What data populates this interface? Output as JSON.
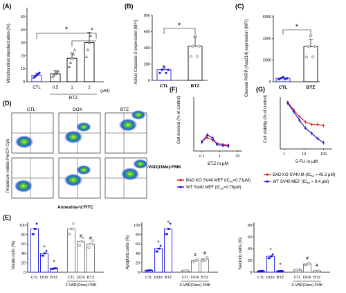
{
  "colors": {
    "blue": "#1616e0",
    "grey": "#6e6e6e",
    "red": "#e02020",
    "dark": "#000000"
  },
  "panels": {
    "A": {
      "letter": "(A)",
      "ylabel": "Mitochondrial depolarization (%)",
      "yticks": [
        "0",
        "10",
        "20",
        "30",
        "40",
        "50"
      ],
      "categories": [
        "CTL",
        "0.5",
        "1",
        "2"
      ],
      "group": "BTZ",
      "unit": "(μM)",
      "star": "*",
      "values": [
        5,
        6,
        18,
        30
      ],
      "errors": [
        1.5,
        2.5,
        4,
        8
      ]
    },
    "B": {
      "letter": "(B)",
      "ylabel": "Active Caspase-3 expression (MFI)",
      "yticks": [
        "0",
        "200",
        "400",
        "600",
        "800"
      ],
      "categories": [
        "CTL",
        "BTZ"
      ],
      "star": "*",
      "values": [
        130,
        420
      ],
      "errors": [
        15,
        110
      ]
    },
    "C": {
      "letter": "(C)",
      "ylabel": "Cleaved PARP (Asp214) expression (MFI)",
      "yticks": [
        "0",
        "2000",
        "4000",
        "6000"
      ],
      "categories": [
        "CTL",
        "BTZ"
      ],
      "star": "*",
      "values": [
        320,
        3250
      ],
      "errors": [
        80,
        650
      ]
    },
    "D": {
      "letter": "(D)",
      "columns": [
        "CTL",
        "DOX",
        "BTZ"
      ],
      "ylabel": "Propidium Iodide-PerCP-Cy5",
      "xlabel": "Annexina-V:FITC",
      "rowlabel": "Z-VAD(OMe)-FMK"
    },
    "F": {
      "letter": "(F)",
      "ylabel": "Cell survival (% of control)",
      "xlabel": "BTZ in μM",
      "xticks": [
        "0.1",
        "1",
        "10"
      ]
    },
    "G": {
      "letter": "(G)",
      "ylabel": "Cell viability (% of control)",
      "xlabel": "5-FU in μM",
      "xticks": [
        "1",
        "10",
        "100"
      ]
    },
    "legend": {
      "bad_f": "BAD KO SV40 MEF (IC",
      "bad_f2": "=0.73μM)",
      "wt_f": "WT SV40 MEF (IC",
      "wt_f2": "=0.78μM)",
      "bad_g": "BAD KO SV40 M (IC",
      "bad_g2": " = 45.3 μM)",
      "wt_g": "WT SV40 MEF (IC",
      "wt_g2": " = 9.4 μM)",
      "sub": "50"
    },
    "E": {
      "letter": "(E)",
      "viable": {
        "ylabel": "Viable cells (%)",
        "yticks": [
          "0",
          "20",
          "40",
          "60",
          "80",
          "100"
        ]
      },
      "apoptotic": {
        "ylabel": "Apoptotic cells (%)",
        "yticks": [
          "0",
          "20",
          "40",
          "60",
          "80",
          "100"
        ]
      },
      "necrotic": {
        "ylabel": "Necrotic cells (%)",
        "yticks": [
          "0",
          "20",
          "40",
          "60",
          "80"
        ]
      },
      "categories": [
        "CTL",
        "DOX",
        "BTZ",
        "CTL",
        "DOX",
        "BTZ"
      ],
      "zvad": "Z-VAD(Ome)-FMK",
      "star": "*",
      "hash": "#"
    }
  },
  "chart_data": [
    {
      "type": "bar",
      "title": "",
      "categories": [
        "CTL",
        "0.5",
        "1",
        "2"
      ],
      "values": [
        5,
        6,
        18,
        30
      ],
      "errors": [
        1.5,
        2.5,
        4,
        8
      ],
      "xlabel": "BTZ (μM)",
      "ylabel": "Mitochondrial depolarization (%)",
      "ylim": [
        0,
        50
      ]
    },
    {
      "type": "bar",
      "categories": [
        "CTL",
        "BTZ"
      ],
      "values": [
        130,
        420
      ],
      "errors": [
        15,
        110
      ],
      "ylabel": "Active Caspase-3 expression (MFI)",
      "ylim": [
        0,
        800
      ]
    },
    {
      "type": "bar",
      "categories": [
        "CTL",
        "BTZ"
      ],
      "values": [
        320,
        3250
      ],
      "errors": [
        80,
        650
      ],
      "ylabel": "Cleaved PARP (Asp214) expression (MFI)",
      "ylim": [
        0,
        6000
      ]
    },
    {
      "type": "line",
      "xlabel": "BTZ in μM",
      "ylabel": "Cell survival (% of control)",
      "log_x": true,
      "series": [
        {
          "name": "BAD KO SV40 MEF (IC50=0.73μM)",
          "x": [
            0.1,
            0.2,
            0.4,
            0.7,
            1.5,
            3
          ],
          "y": [
            18,
            25,
            20,
            14,
            12,
            11
          ]
        },
        {
          "name": "WT SV40 MEF (IC50=0.78μM)",
          "x": [
            0.1,
            0.2,
            0.4,
            0.7,
            1.5,
            3
          ],
          "y": [
            16,
            30,
            24,
            12,
            10,
            9
          ]
        }
      ]
    },
    {
      "type": "line",
      "xlabel": "5-FU in μM",
      "ylabel": "Cell viability (% of control)",
      "log_x": true,
      "series": [
        {
          "name": "BAD KO SV40 M (IC50 = 45.3 μM)",
          "x": [
            1.5,
            3,
            6,
            12,
            25,
            50,
            100
          ],
          "y": [
            90,
            75,
            62,
            52,
            47,
            47,
            45
          ]
        },
        {
          "name": "WT SV40 MEF (IC50 = 9.4 μM)",
          "x": [
            1.5,
            3,
            6,
            12,
            25,
            50,
            100
          ],
          "y": [
            88,
            72,
            55,
            40,
            30,
            20,
            12
          ]
        }
      ]
    },
    {
      "type": "bar",
      "ylabel": "Viable cells (%)",
      "categories": [
        "CTL",
        "DOX",
        "BTZ",
        "CTL",
        "DOX",
        "BTZ"
      ],
      "values": [
        92,
        40,
        8,
        92,
        65,
        60
      ],
      "ylim": [
        0,
        100
      ]
    },
    {
      "type": "bar",
      "ylabel": "Apoptotic cells (%)",
      "categories": [
        "CTL",
        "DOX",
        "BTZ",
        "CTL",
        "DOX",
        "BTZ"
      ],
      "values": [
        4,
        50,
        92,
        3,
        25,
        28
      ],
      "ylim": [
        0,
        100
      ]
    },
    {
      "type": "bar",
      "ylabel": "Necrotic cells (%)",
      "categories": [
        "CTL",
        "DOX",
        "BTZ",
        "CTL",
        "DOX",
        "BTZ"
      ],
      "values": [
        2,
        27,
        2,
        4,
        14,
        2
      ],
      "ylim": [
        0,
        80
      ]
    }
  ]
}
